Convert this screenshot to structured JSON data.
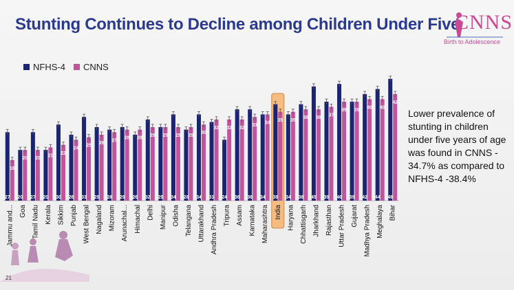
{
  "title": "Stunting Continues to Decline among Children Under Five",
  "logo": {
    "name": "CNNS",
    "tagline": "Birth to Adolescence"
  },
  "note": "Lower prevalence of stunting in children under five years of age was found in CNNS - 34.7% as compared to NFHS-4 -38.4%",
  "page_number": "21",
  "colors": {
    "nfhs4": "#1b2470",
    "cnns": "#c0559e",
    "highlight": "#f6b26b",
    "title": "#2b3a8c"
  },
  "chart_data": {
    "type": "bar",
    "title": "",
    "xlabel": "",
    "ylabel": "",
    "ylim": [
      0,
      52
    ],
    "legend": "top-left",
    "highlight_category": "India",
    "categories": [
      "Jammu and...",
      "Goa",
      "Tamil Nadu",
      "Kerala",
      "Sikkim",
      "Punjab",
      "West Bengal",
      "Nagaland",
      "Mizoram",
      "Arunachal...",
      "Himachal",
      "Delhi",
      "Manipur",
      "Odisha",
      "Telangana",
      "Uttarakhand",
      "Andhra Pradesh",
      "Tripura",
      "Assam",
      "Karnataka",
      "Maharashtra",
      "India",
      "Haryana",
      "Chhattisgarh",
      "Jharkhand",
      "Rajasthan",
      "Uttar Pradesh",
      "Gujarat",
      "Madhya Pradesh",
      "Meghalaya",
      "Bihar"
    ],
    "series": [
      {
        "name": "NFHS-4",
        "values": [
          27,
          20,
          27,
          20,
          30,
          26,
          33,
          29,
          28,
          29,
          26,
          32,
          29,
          34,
          28,
          34,
          31,
          24,
          36,
          36,
          34,
          38,
          34,
          38,
          45,
          39,
          46,
          39,
          42,
          44,
          48
        ]
      },
      {
        "name": "CNNS",
        "values": [
          16,
          20,
          20,
          21,
          22,
          24,
          25,
          26,
          27,
          28,
          28,
          29,
          29,
          29,
          29,
          30,
          32,
          32,
          32,
          33,
          34,
          35,
          35,
          36,
          36,
          37,
          39,
          39,
          40,
          40,
          42
        ]
      }
    ]
  }
}
